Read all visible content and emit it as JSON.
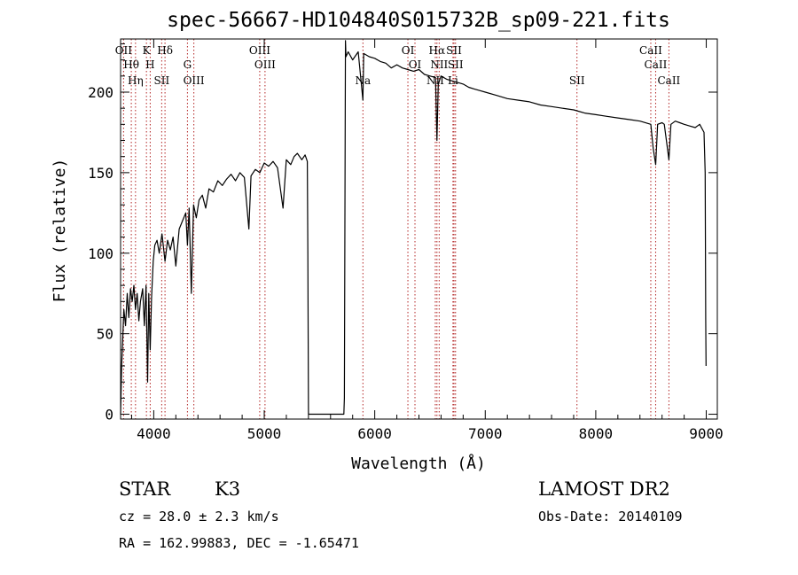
{
  "chart_data": {
    "type": "line",
    "title": "spec-56667-HD104840S015732B_sp09-221.fits",
    "xlabel": "Wavelength (Å)",
    "ylabel": "Flux (relative)",
    "xlim": [
      3700,
      9100
    ],
    "ylim": [
      -3,
      233
    ],
    "x_ticks": [
      4000,
      5000,
      6000,
      7000,
      8000,
      9000
    ],
    "x_tick_labels": [
      "4000",
      "5000",
      "6000",
      "7000",
      "8000",
      "9000"
    ],
    "y_ticks": [
      0,
      50,
      100,
      150,
      200
    ],
    "y_tick_labels": [
      "0",
      "50",
      "100",
      "150",
      "200"
    ],
    "grid": false,
    "series": [
      {
        "color": "#000000",
        "x": [
          3700,
          3710,
          3730,
          3745,
          3760,
          3775,
          3790,
          3805,
          3820,
          3835,
          3850,
          3865,
          3880,
          3900,
          3915,
          3930,
          3945,
          3955,
          3968,
          3980,
          3995,
          4010,
          4030,
          4050,
          4075,
          4102,
          4125,
          4150,
          4175,
          4200,
          4230,
          4260,
          4290,
          4305,
          4320,
          4340,
          4360,
          4385,
          4410,
          4440,
          4470,
          4500,
          4540,
          4580,
          4620,
          4660,
          4700,
          4740,
          4780,
          4820,
          4861,
          4880,
          4920,
          4960,
          5000,
          5040,
          5080,
          5120,
          5170,
          5200,
          5240,
          5270,
          5300,
          5340,
          5370,
          5390,
          5395,
          5400,
          5720,
          5725,
          5735,
          5740,
          5760,
          5800,
          5850,
          5893,
          5900,
          5950,
          6000,
          6050,
          6100,
          6150,
          6200,
          6250,
          6300,
          6350,
          6400,
          6450,
          6500,
          6550,
          6563,
          6575,
          6600,
          6650,
          6700,
          6750,
          6800,
          6850,
          6900,
          6950,
          7000,
          7100,
          7200,
          7300,
          7400,
          7500,
          7600,
          7700,
          7800,
          7900,
          8000,
          8100,
          8200,
          8300,
          8400,
          8498,
          8520,
          8542,
          8560,
          8600,
          8620,
          8662,
          8680,
          8720,
          8760,
          8800,
          8850,
          8900,
          8940,
          8980,
          8990,
          8995,
          8998
        ],
        "y": [
          0,
          30,
          65,
          55,
          75,
          60,
          78,
          70,
          80,
          65,
          75,
          58,
          70,
          78,
          55,
          80,
          20,
          75,
          40,
          72,
          95,
          105,
          108,
          100,
          112,
          95,
          108,
          102,
          110,
          92,
          115,
          120,
          125,
          105,
          128,
          75,
          130,
          122,
          133,
          136,
          128,
          140,
          138,
          145,
          142,
          146,
          149,
          145,
          150,
          147,
          115,
          148,
          152,
          150,
          156,
          154,
          157,
          153,
          128,
          158,
          155,
          160,
          162,
          158,
          161,
          157,
          100,
          0,
          0,
          10,
          232,
          222,
          225,
          220,
          225,
          195,
          224,
          222,
          221,
          219,
          218,
          215,
          217,
          215,
          214,
          213,
          214,
          211,
          210,
          209,
          170,
          205,
          210,
          208,
          207,
          206,
          205,
          203,
          202,
          201,
          200,
          198,
          196,
          195,
          194,
          192,
          191,
          190,
          189,
          187,
          186,
          185,
          184,
          183,
          182,
          180,
          165,
          155,
          180,
          181,
          180,
          158,
          180,
          182,
          181,
          180,
          179,
          178,
          180,
          175,
          150,
          60,
          30
        ]
      }
    ],
    "line_markers": [
      {
        "label": "OII",
        "x": 3727
      },
      {
        "label": "Hθ",
        "x": 3797
      },
      {
        "label": "Hη",
        "x": 3835
      },
      {
        "label": "K",
        "x": 3934
      },
      {
        "label": "H",
        "x": 3968
      },
      {
        "label": "SII",
        "x": 4072
      },
      {
        "label": "Hδ",
        "x": 4102
      },
      {
        "label": "G",
        "x": 4305
      },
      {
        "label": "OIII",
        "x": 4363
      },
      {
        "label": "OIII",
        "x": 4959
      },
      {
        "label": "OIII",
        "x": 5007
      },
      {
        "label": "Na",
        "x": 5893
      },
      {
        "label": "OI",
        "x": 6300
      },
      {
        "label": "OI",
        "x": 6364
      },
      {
        "label": "NII",
        "x": 6548
      },
      {
        "label": "Hα",
        "x": 6563
      },
      {
        "label": "NII",
        "x": 6583
      },
      {
        "label": "Li",
        "x": 6708
      },
      {
        "label": "SII",
        "x": 6717
      },
      {
        "label": "SII",
        "x": 6731
      },
      {
        "label": "SII",
        "x": 7830
      },
      {
        "label": "CaII",
        "x": 8498
      },
      {
        "label": "CaII",
        "x": 8542
      },
      {
        "label": "CaII",
        "x": 8662
      }
    ],
    "marker_color": "#b22222"
  },
  "info": {
    "object_class": "STAR",
    "subclass": "K3",
    "survey": "LAMOST DR2",
    "cz": "cz = 28.0 ± 2.3 km/s",
    "obs_date": "Obs-Date: 20140109",
    "coords": "RA = 162.99883, DEC =  -1.65471"
  }
}
